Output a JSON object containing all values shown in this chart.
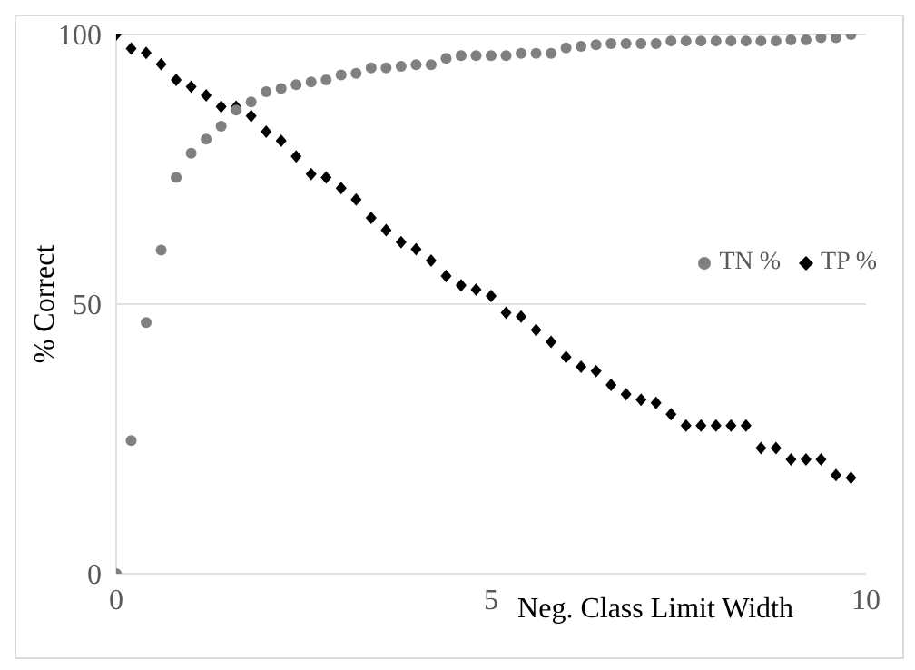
{
  "chart_data": {
    "type": "scatter",
    "xlabel": "Neg. Class Limit Width",
    "ylabel": "% Correct",
    "x": [
      0,
      0.2,
      0.4,
      0.6,
      0.8,
      1,
      1.2,
      1.4,
      1.6,
      1.8,
      2,
      2.2,
      2.4,
      2.6,
      2.8,
      3,
      3.2,
      3.4,
      3.6,
      3.8,
      4,
      4.2,
      4.4,
      4.6,
      4.8,
      5,
      5.2,
      5.4,
      5.6,
      5.8,
      6,
      6.2,
      6.4,
      6.6,
      6.8,
      7,
      7.2,
      7.4,
      7.6,
      7.8,
      8,
      8.2,
      8.4,
      8.6,
      8.8,
      9,
      9.2,
      9.4,
      9.6,
      9.8
    ],
    "series": [
      {
        "name": "TN %",
        "color": "#808080",
        "marker": "circle",
        "values": [
          0,
          24.7,
          46.6,
          60,
          73.5,
          78,
          80.6,
          83,
          86,
          87.5,
          89.4,
          90,
          90.7,
          91.2,
          91.6,
          92.5,
          92.8,
          93.8,
          93.8,
          94.1,
          94.4,
          94.4,
          95.6,
          96.1,
          96.1,
          96.1,
          96.1,
          96.5,
          96.5,
          96.5,
          97.5,
          97.8,
          98.1,
          98.3,
          98.3,
          98.3,
          98.3,
          98.8,
          98.8,
          98.8,
          98.8,
          98.8,
          98.8,
          98.8,
          98.8,
          99,
          99,
          99.4,
          99.4,
          100
        ]
      },
      {
        "name": "TP %",
        "color": "#000000",
        "marker": "diamond",
        "values": [
          100,
          97.4,
          96.6,
          94.5,
          91.6,
          90.3,
          88.7,
          86.6,
          86.6,
          84.9,
          82,
          80.3,
          77.4,
          74.1,
          73.5,
          71.5,
          69.4,
          66,
          63.7,
          61.5,
          60.2,
          58.1,
          55.2,
          53.5,
          52.7,
          51.5,
          48.4,
          47.7,
          45.2,
          43,
          40.2,
          38.4,
          37.6,
          35,
          33.3,
          32.3,
          31.7,
          29.6,
          27.5,
          27.5,
          27.5,
          27.5,
          27.5,
          23.3,
          23.3,
          21.2,
          21.2,
          21.2,
          18.3,
          17.8
        ]
      }
    ],
    "xlim": [
      0,
      10
    ],
    "xticks": [
      0,
      5,
      10
    ],
    "ylim": [
      0,
      100
    ],
    "yticks": [
      0,
      50,
      100
    ],
    "grid": "y",
    "legend": "right"
  }
}
